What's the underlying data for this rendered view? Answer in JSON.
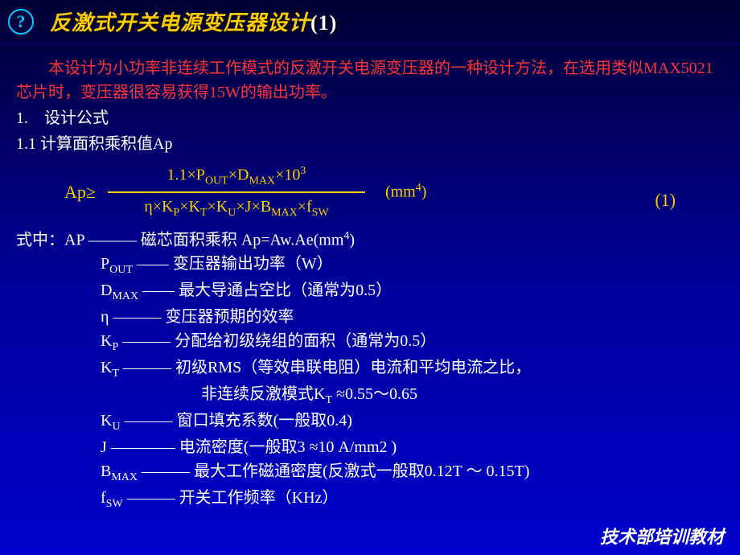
{
  "header": {
    "help_glyph": "?",
    "title_main": "反激式开关电源变压器设计",
    "title_num": "(1)"
  },
  "intro": "本设计为小功率非连续工作模式的反激开关电源变压器的一种设计方法，在选用类似MAX5021芯片时，变压器很容易获得15W的输出功率。",
  "sections": {
    "s1": "1.　设计公式",
    "s11": "1.1 计算面积乘积值Ap"
  },
  "formula": {
    "lhs": "Ap≥",
    "numerator_pre": "1.1×P",
    "numerator_sub1": "OUT",
    "numerator_mid": "×D",
    "numerator_sub2": "MAX",
    "numerator_post": "×10",
    "numerator_sup": "3",
    "denom_parts": [
      "η×K",
      "P",
      "×K",
      "T",
      "×K",
      "U",
      "×J×B",
      "MAX",
      "×f",
      "SW"
    ],
    "unit": "(mm",
    "unit_sup": "4",
    "unit_close": ")",
    "eqnum": "(1)"
  },
  "defs": {
    "header": "式中：AP ――― 磁芯面积乘积 Ap=Aw.Ae(mm",
    "header_sup": "4",
    "header_close": ")",
    "pout_sym": "P",
    "pout_sub": "OUT",
    "pout_txt": " ―― 变压器输出功率（W）",
    "dmax_sym": "D",
    "dmax_sub": "MAX",
    "dmax_txt": " ―― 最大导通占空比（通常为0.5）",
    "eta_sym": "η",
    "eta_txt": " ――― 变压器预期的效率",
    "kp_sym": "K",
    "kp_sub": "P",
    "kp_txt": " ――― 分配给初级绕组的面积（通常为0.5）",
    "kt_sym": "K",
    "kt_sub": "T",
    "kt_txt": " ――― 初级RMS（等效串联电阻）电流和平均电流之比，",
    "kt_cont_pre": "非连续反激模式K",
    "kt_cont_sub": "T",
    "kt_cont_post": " ≈0.55～0.65",
    "ku_sym": "K",
    "ku_sub": "U",
    "ku_txt": " ――― 窗口填充系数(一般取0.4)",
    "j_sym": "J",
    "j_txt": " ―――― 电流密度(一般取3 ≈10 A/mm2 )",
    "bmax_sym": "B",
    "bmax_sub": "MAX",
    "bmax_txt": " ――― 最大工作磁通密度(反激式一般取0.12T ～ 0.15T)",
    "fsw_sym": "f",
    "fsw_sub": "SW",
    "fsw_txt": " ――― 开关工作频率（KHz）"
  },
  "footer": "技术部培训教材",
  "colors": {
    "bg_top": "#000033",
    "bg_bottom": "#0000cc",
    "title_color": "#ffcc00",
    "intro_color": "#ff3333",
    "text_color": "#ffffff",
    "formula_color": "#ffcc00",
    "help_color": "#00ccff"
  }
}
